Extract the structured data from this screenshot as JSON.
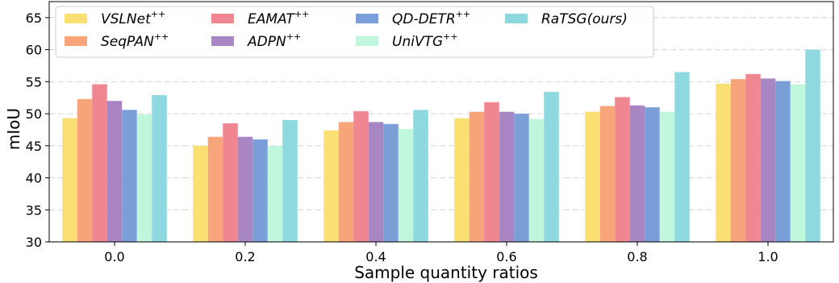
{
  "chart_data": {
    "type": "bar",
    "xlabel": "Sample quantity ratios",
    "ylabel": "mIoU",
    "ylim": [
      30,
      67.5
    ],
    "yticks": [
      30,
      35,
      40,
      45,
      50,
      55,
      60,
      65
    ],
    "grid": "horizontal dashed",
    "legend_position": "top-left",
    "categories": [
      "0.0",
      "0.2",
      "0.4",
      "0.6",
      "0.8",
      "1.0"
    ],
    "series": [
      {
        "name": "VSLNet",
        "sup": "++",
        "color": "#fadf72",
        "values": [
          49.3,
          45.0,
          47.4,
          49.3,
          50.3,
          54.7
        ]
      },
      {
        "name": "SeqPAN",
        "sup": "++",
        "color": "#f7a47b",
        "values": [
          52.3,
          46.4,
          48.7,
          50.3,
          51.2,
          55.4
        ]
      },
      {
        "name": "EAMAT",
        "sup": "++",
        "color": "#f08690",
        "values": [
          54.6,
          48.5,
          50.4,
          51.8,
          52.6,
          56.2
        ]
      },
      {
        "name": "ADPN",
        "sup": "++",
        "color": "#a886c4",
        "values": [
          52.0,
          46.4,
          48.7,
          50.3,
          51.3,
          55.5
        ]
      },
      {
        "name": "QD-DETR",
        "sup": "++",
        "color": "#7a9fd8",
        "values": [
          50.6,
          46.0,
          48.4,
          50.0,
          51.0,
          55.1
        ]
      },
      {
        "name": "UniVTG",
        "sup": "++",
        "color": "#c0f7dc",
        "values": [
          49.9,
          45.0,
          47.6,
          49.2,
          50.3,
          54.6
        ]
      },
      {
        "name": "RaTSG(ours)",
        "sup": "",
        "color": "#8ed8e0",
        "values": [
          52.9,
          49.0,
          50.6,
          53.4,
          56.5,
          60.0
        ]
      }
    ]
  }
}
